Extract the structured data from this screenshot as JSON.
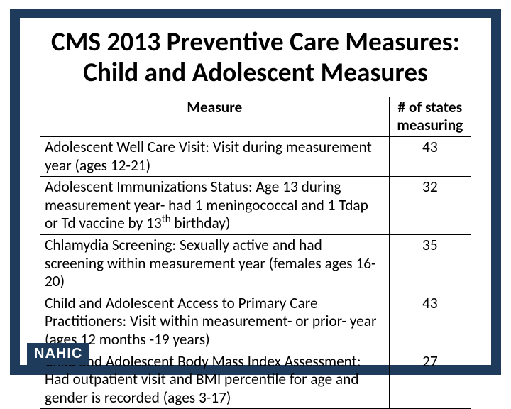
{
  "style": {
    "frame_color": "#1f3b5c",
    "title_fontsize_pt": 28,
    "table_fontsize_pt": 16,
    "logo_bg": "#1f3b5c",
    "logo_fg": "#ffffff"
  },
  "title_line1": "CMS  2013 Preventive Care Measures:",
  "title_line2": "Child and Adolescent Measures",
  "table": {
    "header": {
      "measure": "Measure",
      "count": "# of states measuring"
    },
    "rows": [
      {
        "measure": " Adolescent Well Care Visit: Visit during measurement year (ages 12-21)",
        "count": "43"
      },
      {
        "measure": "Adolescent Immunizations Status: Age 13 during measurement year- had 1 meningococcal and 1 Tdap or Td vaccine by 13",
        "measure_suffix_sup": "th",
        "measure_tail": " birthday)",
        "count": "32"
      },
      {
        "measure": "Chlamydia Screening: Sexually active and had screening within measurement year (females ages 16-20)",
        "count": "35"
      },
      {
        "measure": "Child and Adolescent Access to Primary Care Practitioners: Visit within measurement- or prior- year (ages 12 months -19 years)",
        "count": "43"
      },
      {
        "measure": " Child and Adolescent  Body Mass Index Assessment: Had outpatient visit and BMI percentile for age and gender is recorded  (ages 3-17)",
        "count": "27"
      }
    ]
  },
  "logo_text": "NAHIC"
}
